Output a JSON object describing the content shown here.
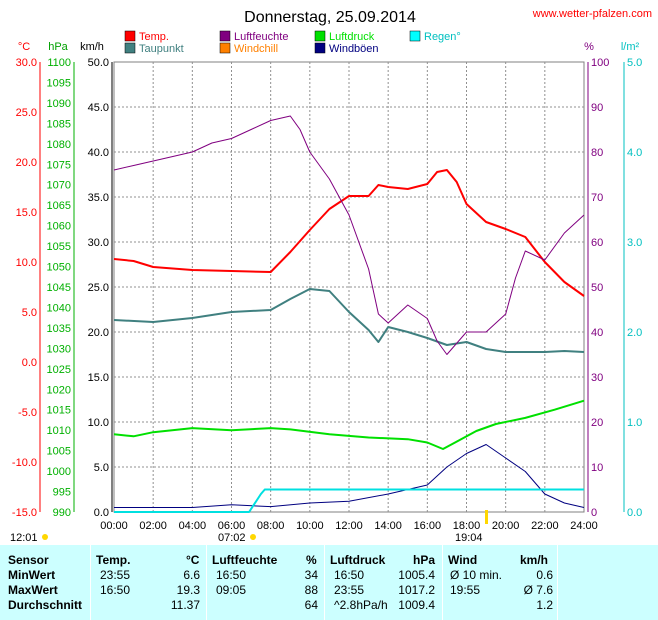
{
  "title": "Donnerstag, 25.09.2014",
  "website": "www.wetter-pfalzen.com",
  "colors": {
    "temp": "#ff0000",
    "dew": "#408080",
    "humidity": "#800080",
    "windchill": "#ff8000",
    "pressure": "#00e000",
    "gust": "#000080",
    "rain": "#00e0e0",
    "frame": "#808080",
    "grid": "#909090",
    "wind": "#000000"
  },
  "legend": [
    {
      "label": "Temp.",
      "color": "#ff0000"
    },
    {
      "label": "Taupunkt",
      "color": "#408080"
    },
    {
      "label": "Luftfeuchte",
      "color": "#800080"
    },
    {
      "label": "Windchill",
      "color": "#ff8000"
    },
    {
      "label": "Luftdruck",
      "color": "#00e000"
    },
    {
      "label": "Windböen",
      "color": "#000080"
    },
    {
      "label": "Regen°",
      "color": "#00ffff"
    }
  ],
  "axis_units": {
    "temp": "°C",
    "pressure": "hPa",
    "wind": "km/h",
    "humidity": "%",
    "rain": "l/m²"
  },
  "sun": {
    "sunrise_left": "12:01",
    "sunrise": "07:02",
    "sunset": "19:04"
  },
  "chart_data": {
    "type": "line",
    "title": "Donnerstag, 25.09.2014",
    "x_ticks": [
      "00:00",
      "02:00",
      "04:00",
      "06:00",
      "08:00",
      "10:00",
      "12:00",
      "14:00",
      "16:00",
      "18:00",
      "20:00",
      "22:00",
      "24:00"
    ],
    "axes": {
      "temp": {
        "unit": "°C",
        "range": [
          -15,
          30
        ],
        "ticks": [
          "30.0",
          "25.0",
          "20.0",
          "15.0",
          "10.0",
          "5.0",
          "0.0",
          "-5.0",
          "-10.0",
          "-15.0"
        ]
      },
      "pressure": {
        "unit": "hPa",
        "range": [
          990,
          1100
        ],
        "ticks": [
          "1100",
          "1095",
          "1090",
          "1085",
          "1080",
          "1075",
          "1070",
          "1065",
          "1060",
          "1055",
          "1050",
          "1045",
          "1040",
          "1035",
          "1030",
          "1025",
          "1020",
          "1015",
          "1010",
          "1005",
          "1000",
          "995",
          "990"
        ]
      },
      "wind": {
        "unit": "km/h",
        "range": [
          0,
          50
        ],
        "ticks": [
          "50.0",
          "45.0",
          "40.0",
          "35.0",
          "30.0",
          "25.0",
          "20.0",
          "15.0",
          "10.0",
          "5.0",
          "0.0"
        ]
      },
      "humidity": {
        "unit": "%",
        "range": [
          0,
          100
        ],
        "ticks": [
          "100",
          "90",
          "80",
          "70",
          "60",
          "50",
          "40",
          "30",
          "20",
          "10",
          "0"
        ]
      },
      "rain": {
        "unit": "l/m²",
        "range": [
          0,
          5
        ],
        "ticks": [
          "5.0",
          "4.0",
          "3.0",
          "2.0",
          "1.0",
          "0.0"
        ]
      }
    },
    "series": [
      {
        "name": "Temp.",
        "axis": "temp",
        "points": [
          [
            0,
            10.3
          ],
          [
            1,
            10.1
          ],
          [
            2,
            9.5
          ],
          [
            4,
            9.2
          ],
          [
            6,
            9.1
          ],
          [
            8,
            9.0
          ],
          [
            9,
            11.0
          ],
          [
            10,
            13.2
          ],
          [
            11,
            15.3
          ],
          [
            12,
            16.6
          ],
          [
            13,
            16.6
          ],
          [
            13.5,
            17.7
          ],
          [
            14,
            17.5
          ],
          [
            15,
            17.3
          ],
          [
            16,
            17.8
          ],
          [
            16.5,
            19.0
          ],
          [
            17,
            19.2
          ],
          [
            17.5,
            18.0
          ],
          [
            18,
            15.8
          ],
          [
            19,
            14.0
          ],
          [
            20,
            13.3
          ],
          [
            21,
            12.5
          ],
          [
            22,
            10.0
          ],
          [
            23,
            8.0
          ],
          [
            24,
            6.6
          ]
        ]
      },
      {
        "name": "Taupunkt",
        "axis": "temp",
        "points": [
          [
            0,
            4.2
          ],
          [
            2,
            4.0
          ],
          [
            4,
            4.4
          ],
          [
            6,
            5.0
          ],
          [
            8,
            5.2
          ],
          [
            9,
            6.3
          ],
          [
            10,
            7.3
          ],
          [
            11,
            7.1
          ],
          [
            12,
            5.0
          ],
          [
            13,
            3.2
          ],
          [
            13.5,
            2.0
          ],
          [
            14,
            3.5
          ],
          [
            15,
            3.0
          ],
          [
            16,
            2.4
          ],
          [
            17,
            1.7
          ],
          [
            18,
            2.0
          ],
          [
            19,
            1.3
          ],
          [
            20,
            1.0
          ],
          [
            21,
            1.0
          ],
          [
            22,
            1.0
          ],
          [
            23,
            1.1
          ],
          [
            24,
            1.0
          ]
        ]
      },
      {
        "name": "Luftfeuchte",
        "axis": "humidity",
        "points": [
          [
            0,
            76
          ],
          [
            1,
            77
          ],
          [
            2,
            78
          ],
          [
            3,
            79
          ],
          [
            4,
            80
          ],
          [
            5,
            82
          ],
          [
            6,
            83
          ],
          [
            7,
            85
          ],
          [
            8,
            87
          ],
          [
            9,
            88
          ],
          [
            9.5,
            85
          ],
          [
            10,
            80
          ],
          [
            11,
            74
          ],
          [
            12,
            66
          ],
          [
            13,
            54
          ],
          [
            13.5,
            44
          ],
          [
            14,
            42
          ],
          [
            15,
            46
          ],
          [
            16,
            43
          ],
          [
            16.5,
            38
          ],
          [
            17,
            35
          ],
          [
            18,
            40
          ],
          [
            19,
            40
          ],
          [
            20,
            44
          ],
          [
            20.5,
            52
          ],
          [
            21,
            58
          ],
          [
            22,
            56
          ],
          [
            23,
            62
          ],
          [
            24,
            66
          ]
        ]
      },
      {
        "name": "Luftdruck",
        "axis": "pressure",
        "points": [
          [
            0,
            1009.0
          ],
          [
            1,
            1008.5
          ],
          [
            2,
            1009.5
          ],
          [
            4,
            1010.5
          ],
          [
            6,
            1010.0
          ],
          [
            8,
            1010.5
          ],
          [
            9,
            1010.2
          ],
          [
            11,
            1009.0
          ],
          [
            13,
            1008.2
          ],
          [
            15,
            1007.8
          ],
          [
            16,
            1007.0
          ],
          [
            16.8,
            1005.4
          ],
          [
            17.5,
            1007.2
          ],
          [
            18.5,
            1009.8
          ],
          [
            19.5,
            1011.5
          ],
          [
            21,
            1013.0
          ],
          [
            22.5,
            1015.0
          ],
          [
            24,
            1017.2
          ]
        ]
      },
      {
        "name": "Windböen",
        "axis": "wind",
        "points": [
          [
            0,
            0.5
          ],
          [
            2,
            0.5
          ],
          [
            4,
            0.5
          ],
          [
            6,
            0.8
          ],
          [
            8,
            0.6
          ],
          [
            10,
            1.0
          ],
          [
            12,
            1.2
          ],
          [
            14,
            2.0
          ],
          [
            16,
            3.0
          ],
          [
            17,
            5.0
          ],
          [
            18,
            6.5
          ],
          [
            19,
            7.5
          ],
          [
            20,
            6.0
          ],
          [
            21,
            4.5
          ],
          [
            22,
            2.0
          ],
          [
            23,
            1.0
          ],
          [
            24,
            0.5
          ]
        ]
      },
      {
        "name": "Regen°",
        "axis": "rain",
        "points": [
          [
            0,
            0
          ],
          [
            6.9,
            0
          ],
          [
            7.5,
            0.2
          ],
          [
            7.7,
            0.25
          ],
          [
            24,
            0.25
          ]
        ]
      }
    ]
  },
  "stats": {
    "header": {
      "sensor": "Sensor",
      "temp": "Temp.",
      "temp_unit": "°C",
      "hum": "Luftfeuchte",
      "hum_unit": "%",
      "press": "Luftdruck",
      "press_unit": "hPa",
      "wind": "Wind",
      "wind_unit": "km/h"
    },
    "rows": [
      {
        "label": "MinWert",
        "t_time": "23:55",
        "t_val": "6.6",
        "h_time": "16:50",
        "h_val": "34",
        "p_time": "16:50",
        "p_val": "1005.4",
        "w_time": "Ø 10 min.",
        "w_val": "0.6"
      },
      {
        "label": "MaxWert",
        "t_time": "16:50",
        "t_val": "19.3",
        "h_time": "09:05",
        "h_val": "88",
        "p_time": "23:55",
        "p_val": "1017.2",
        "w_time": "19:55",
        "w_val": "Ø 7.6"
      },
      {
        "label": "Durchschnitt",
        "t_time": "",
        "t_val": "11.37",
        "h_time": "",
        "h_val": "64",
        "p_time": "^2.8hPa/h",
        "p_val": "1009.4",
        "w_time": "",
        "w_val": "1.2"
      }
    ]
  }
}
